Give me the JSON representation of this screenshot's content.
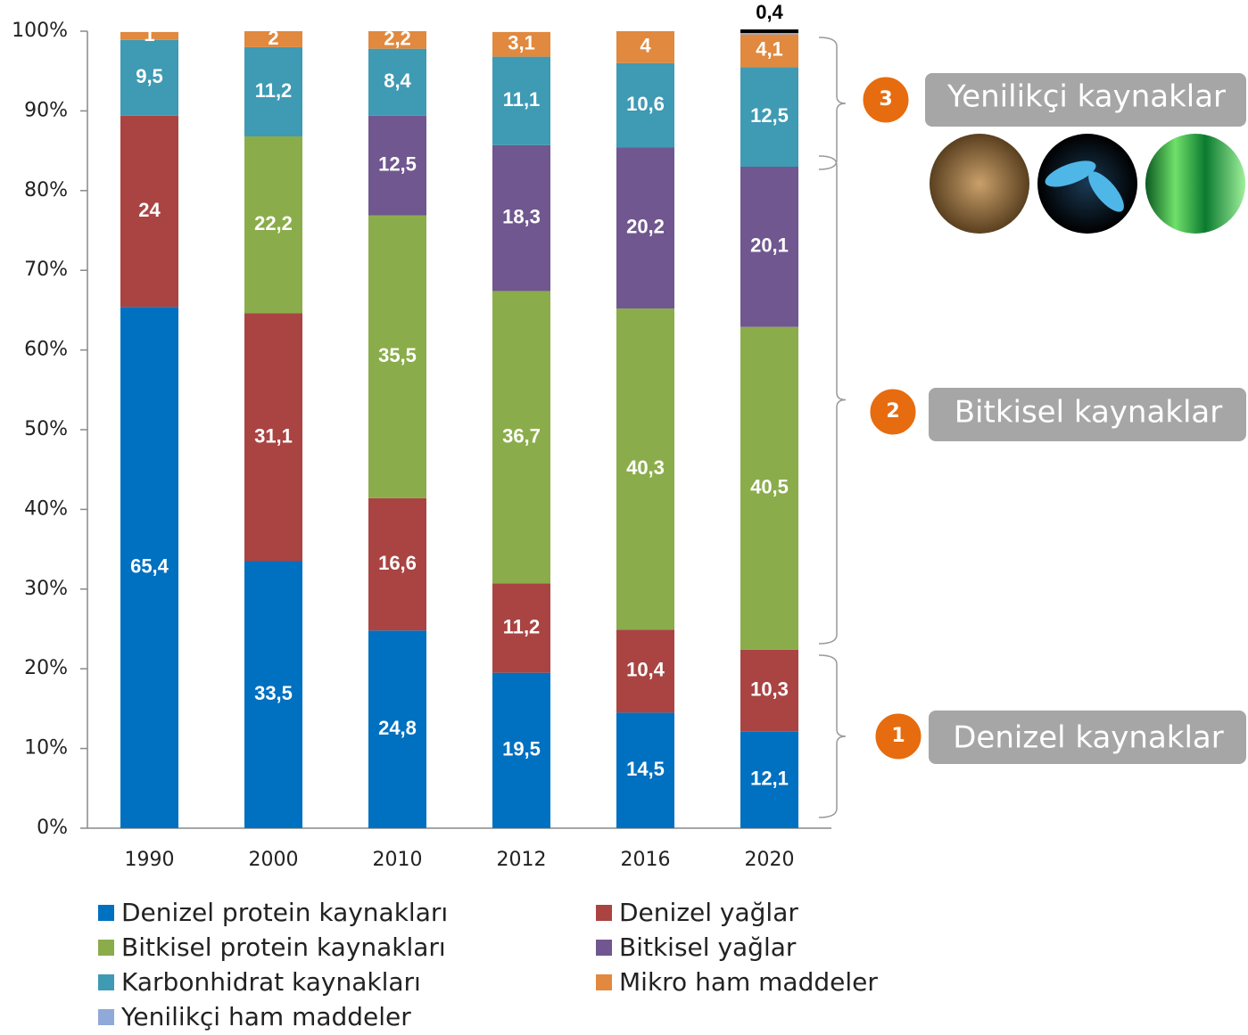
{
  "chart_data": {
    "type": "stacked_bar",
    "categories": [
      "1990",
      "2000",
      "2010",
      "2012",
      "2016",
      "2020"
    ],
    "ylim": [
      0,
      100
    ],
    "yticks": [
      {
        "value": 0,
        "label": "0%"
      },
      {
        "value": 10,
        "label": "10%"
      },
      {
        "value": 20,
        "label": "20%"
      },
      {
        "value": 30,
        "label": "30%"
      },
      {
        "value": 40,
        "label": "40%"
      },
      {
        "value": 50,
        "label": "50%"
      },
      {
        "value": 60,
        "label": "60%"
      },
      {
        "value": 70,
        "label": "70%"
      },
      {
        "value": 80,
        "label": "80%"
      },
      {
        "value": 90,
        "label": "90%"
      },
      {
        "value": 100,
        "label": "100%"
      }
    ],
    "series": [
      {
        "name": "Denizel protein kaynakları",
        "color": "#0070c0",
        "values": [
          65.4,
          33.5,
          24.8,
          19.5,
          14.5,
          12.1
        ],
        "value_labels": [
          "65,4",
          "33,5",
          "24,8",
          "19,5",
          "14,5",
          "12,1"
        ]
      },
      {
        "name": "Denizel yağlar",
        "color": "#a94442",
        "values": [
          24,
          31.1,
          16.6,
          11.2,
          10.4,
          10.3
        ],
        "value_labels": [
          "24",
          "31,1",
          "16,6",
          "11,2",
          "10,4",
          "10,3"
        ]
      },
      {
        "name": "Bitkisel protein kaynakları",
        "color": "#8bac4b",
        "values": [
          null,
          22.2,
          35.5,
          36.7,
          40.3,
          40.5
        ],
        "value_labels": [
          null,
          "22,2",
          "35,5",
          "36,7",
          "40,3",
          "40,5"
        ]
      },
      {
        "name": "Bitkisel yağlar",
        "color": "#70578f",
        "values": [
          null,
          null,
          12.5,
          18.3,
          20.2,
          20.1
        ],
        "value_labels": [
          null,
          null,
          "12,5",
          "18,3",
          "20,2",
          "20,1"
        ]
      },
      {
        "name": "Karbonhidrat kaynakları",
        "color": "#3f9ab3",
        "values": [
          9.5,
          11.2,
          8.4,
          11.1,
          10.6,
          12.5
        ],
        "value_labels": [
          "9,5",
          "11,2",
          "8,4",
          "11,1",
          "10,6",
          "12,5"
        ]
      },
      {
        "name": "Mikro ham maddeler",
        "color": "#e0893f",
        "values": [
          1,
          2,
          2.2,
          3.1,
          4,
          4.1
        ],
        "value_labels": [
          "1",
          "2",
          "2,2",
          "3,1",
          "4",
          "4,1"
        ]
      },
      {
        "name": "Yenilikçi ham maddeler",
        "color": "#8fa9d8",
        "values": [
          null,
          null,
          null,
          null,
          null,
          0.4
        ],
        "value_labels": [
          null,
          null,
          null,
          null,
          null,
          "0,4"
        ]
      }
    ],
    "annotations": [
      {
        "number": "3",
        "text": "Yenilikçi kaynaklar"
      },
      {
        "number": "2",
        "text": "Bitkisel kaynaklar"
      },
      {
        "number": "1",
        "text": "Denizel kaynaklar"
      }
    ]
  }
}
